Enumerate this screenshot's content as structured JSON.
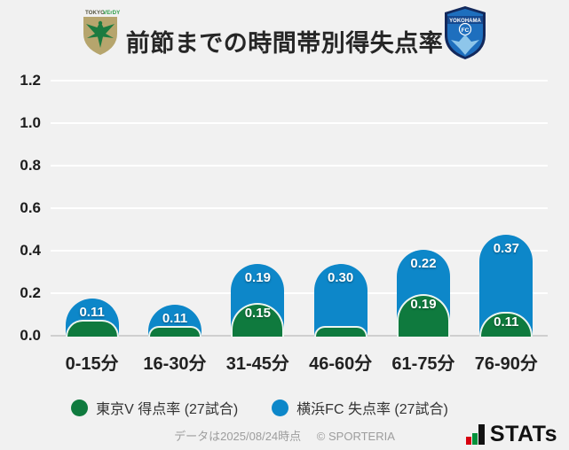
{
  "header": {
    "title": "前節までの時間帯別得失点率",
    "home_logo": {
      "name": "tokyo-verdy-crest",
      "text_top_left": "TOKYO",
      "text_top_right": "VErDY",
      "shield_color": "#b6a56d",
      "bird_color": "#1c7b40"
    },
    "away_logo": {
      "name": "yokohama-fc-crest",
      "banner_text": "YOKOHAMA",
      "circle_text": "FC",
      "shield_color": "#1e6fbe",
      "border_color": "#13295c",
      "bird_color": "#8ec6ea"
    }
  },
  "chart_data": {
    "type": "bar",
    "stacked": true,
    "categories": [
      "0-15分",
      "16-30分",
      "31-45分",
      "46-60分",
      "61-75分",
      "76-90分"
    ],
    "series": [
      {
        "name": "東京V 得点率 (27試合)",
        "color": "#0f7a3e",
        "values": [
          0.07,
          0.04,
          0.15,
          0.04,
          0.19,
          0.11
        ],
        "labels": [
          "",
          "",
          "0.15",
          "",
          "0.19",
          "0.11"
        ]
      },
      {
        "name": "横浜FC 失点率 (27試合)",
        "color": "#0d87c9",
        "values": [
          0.11,
          0.11,
          0.19,
          0.3,
          0.22,
          0.37
        ],
        "labels": [
          "0.11",
          "0.11",
          "0.19",
          "0.30",
          "0.22",
          "0.37"
        ]
      }
    ],
    "title": "前節までの時間帯別得失点率",
    "xlabel": "",
    "ylabel": "",
    "ylim": [
      0,
      1.2
    ],
    "yticks": [
      "1.2",
      "1.0",
      "0.8",
      "0.6",
      "0.4",
      "0.2",
      "0.0"
    ],
    "grid": true,
    "legend_position": "bottom"
  },
  "legend": {
    "items": [
      {
        "label": "東京V 得点率 (27試合)",
        "color": "#0f7a3e"
      },
      {
        "label": "横浜FC 失点率 (27試合)",
        "color": "#0d87c9"
      }
    ]
  },
  "footer": {
    "note": "データは2025/08/24時点",
    "copyright": "© SPORTERIA",
    "logo_text": "STATs",
    "logo_bar_colors": {
      "red": "#d7000f",
      "green": "#00913a",
      "black": "#121212"
    }
  }
}
